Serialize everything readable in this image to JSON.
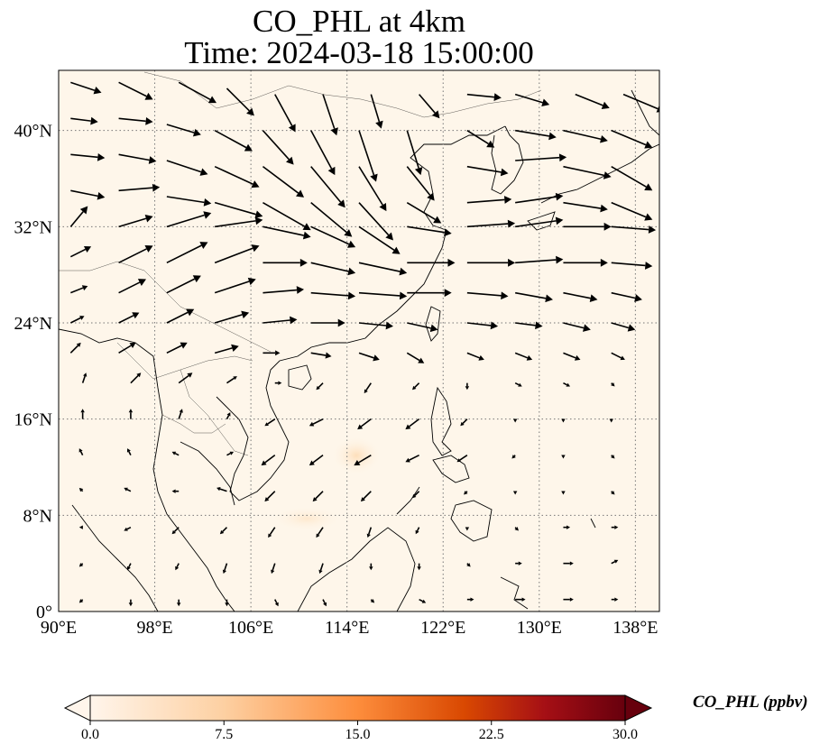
{
  "title": {
    "line1": "CO_PHL at 4km",
    "line2": "Time: 2024-03-18 15:00:00"
  },
  "map": {
    "lon_range": [
      90,
      140
    ],
    "lat_range": [
      0,
      45
    ],
    "lon_ticks": [
      {
        "value": 90,
        "label": "90°E"
      },
      {
        "value": 98,
        "label": "98°E"
      },
      {
        "value": 106,
        "label": "106°E"
      },
      {
        "value": 114,
        "label": "114°E"
      },
      {
        "value": 122,
        "label": "122°E"
      },
      {
        "value": 130,
        "label": "130°E"
      },
      {
        "value": 138,
        "label": "138°E"
      }
    ],
    "lat_ticks": [
      {
        "value": 0,
        "label": "0°"
      },
      {
        "value": 8,
        "label": "8°N"
      },
      {
        "value": 16,
        "label": "16°N"
      },
      {
        "value": 24,
        "label": "24°N"
      },
      {
        "value": 32,
        "label": "32°N"
      },
      {
        "value": 40,
        "label": "40°N"
      }
    ],
    "background_color": "#fef6ea",
    "gridlines": "dotted"
  },
  "colorbar": {
    "label": "CO_PHL (ppbv)",
    "min": 0,
    "max": 30,
    "ticks": [
      "0.0",
      "7.5",
      "15.0",
      "22.5",
      "30.0"
    ],
    "colormap": [
      "#fff5eb",
      "#fdd0a2",
      "#fd8d3c",
      "#d94801",
      "#a50f15",
      "#67000d"
    ],
    "extend": "both"
  },
  "chart_data": {
    "type": "vector-field",
    "description": "wind vectors (direction and relative speed)",
    "vectors": [
      [
        91,
        44,
        0.9,
        -0.3
      ],
      [
        95,
        44,
        1.0,
        -0.5
      ],
      [
        100,
        44,
        1.1,
        -0.6
      ],
      [
        104,
        43.5,
        0.8,
        -0.8
      ],
      [
        108,
        43,
        0.6,
        -1.1
      ],
      [
        112,
        43,
        0.4,
        -1.2
      ],
      [
        116,
        43,
        0.3,
        -1.0
      ],
      [
        120,
        43,
        0.6,
        -0.7
      ],
      [
        124,
        43,
        1.0,
        -0.1
      ],
      [
        128,
        43,
        1.0,
        -0.3
      ],
      [
        133,
        43,
        1.0,
        -0.4
      ],
      [
        137,
        43,
        1.2,
        -0.5
      ],
      [
        91,
        41,
        0.8,
        -0.1
      ],
      [
        95,
        41,
        1.0,
        -0.1
      ],
      [
        99,
        40.5,
        1.0,
        -0.3
      ],
      [
        103,
        40,
        1.1,
        -0.6
      ],
      [
        107,
        40,
        0.9,
        -1.0
      ],
      [
        111,
        40,
        0.7,
        -1.3
      ],
      [
        115,
        40,
        0.5,
        -1.5
      ],
      [
        119,
        40,
        0.4,
        -1.3
      ],
      [
        124,
        40,
        0.8,
        -0.5
      ],
      [
        128,
        40,
        1.2,
        -0.2
      ],
      [
        132,
        40,
        1.3,
        -0.3
      ],
      [
        136,
        40,
        1.2,
        -0.5
      ],
      [
        91,
        38,
        1.0,
        -0.1
      ],
      [
        95,
        38,
        1.1,
        -0.2
      ],
      [
        99,
        37.5,
        1.2,
        -0.4
      ],
      [
        103,
        37,
        1.3,
        -0.6
      ],
      [
        107,
        37,
        1.2,
        -0.9
      ],
      [
        111,
        37,
        1.0,
        -1.2
      ],
      [
        115,
        37,
        0.8,
        -1.3
      ],
      [
        119,
        37,
        0.8,
        -1.0
      ],
      [
        124,
        37,
        1.2,
        -0.2
      ],
      [
        128,
        37.5,
        1.5,
        0.1
      ],
      [
        132,
        37,
        1.4,
        -0.3
      ],
      [
        136,
        37,
        1.2,
        -0.7
      ],
      [
        91,
        35,
        1.0,
        -0.2
      ],
      [
        95,
        35,
        1.2,
        0.1
      ],
      [
        99,
        34.5,
        1.3,
        -0.2
      ],
      [
        103,
        34,
        1.4,
        -0.4
      ],
      [
        107,
        34,
        1.4,
        -0.8
      ],
      [
        111,
        34,
        1.2,
        -1.0
      ],
      [
        115,
        34,
        1.0,
        -1.1
      ],
      [
        119,
        34,
        1.0,
        -0.6
      ],
      [
        124,
        34,
        1.3,
        0.1
      ],
      [
        128,
        34,
        1.4,
        0.2
      ],
      [
        132,
        34,
        1.3,
        -0.2
      ],
      [
        136,
        34,
        1.2,
        -0.5
      ],
      [
        91,
        32,
        0.5,
        0.6
      ],
      [
        95,
        32,
        1.0,
        0.3
      ],
      [
        99,
        32,
        1.3,
        0.4
      ],
      [
        103,
        32,
        1.4,
        0.2
      ],
      [
        107,
        32,
        1.4,
        -0.3
      ],
      [
        111,
        32,
        1.3,
        -0.6
      ],
      [
        115,
        32,
        1.2,
        -0.8
      ],
      [
        119,
        32,
        1.3,
        -0.2
      ],
      [
        124,
        32,
        1.4,
        0.1
      ],
      [
        128,
        32,
        1.4,
        0.2
      ],
      [
        132,
        32,
        1.4,
        0.0
      ],
      [
        136,
        32,
        1.3,
        -0.1
      ],
      [
        91,
        29.5,
        0.6,
        0.3
      ],
      [
        95,
        29,
        1.0,
        0.5
      ],
      [
        99,
        29,
        1.2,
        0.6
      ],
      [
        103,
        29,
        1.3,
        0.5
      ],
      [
        107,
        29,
        1.3,
        0.0
      ],
      [
        111,
        29,
        1.3,
        -0.3
      ],
      [
        115,
        29,
        1.4,
        -0.3
      ],
      [
        119,
        29,
        1.4,
        0.0
      ],
      [
        124,
        29,
        1.4,
        0.0
      ],
      [
        128,
        29,
        1.4,
        0.1
      ],
      [
        132,
        29,
        1.3,
        0.0
      ],
      [
        136,
        29,
        1.2,
        -0.1
      ],
      [
        91,
        26.5,
        0.5,
        0.2
      ],
      [
        95,
        26.5,
        0.8,
        0.4
      ],
      [
        99,
        26.5,
        1.0,
        0.5
      ],
      [
        103,
        26.5,
        1.2,
        0.4
      ],
      [
        107,
        26.5,
        1.2,
        0.1
      ],
      [
        111,
        26.5,
        1.3,
        -0.1
      ],
      [
        115,
        26.5,
        1.4,
        -0.1
      ],
      [
        119,
        26.5,
        1.3,
        0.0
      ],
      [
        124,
        26.5,
        1.2,
        -0.1
      ],
      [
        128,
        26.5,
        1.1,
        -0.2
      ],
      [
        132,
        26.5,
        1.0,
        -0.2
      ],
      [
        136,
        26.5,
        0.9,
        -0.2
      ],
      [
        91,
        24,
        0.4,
        0.2
      ],
      [
        95,
        24,
        0.6,
        0.3
      ],
      [
        99,
        24,
        0.8,
        0.4
      ],
      [
        103,
        24,
        1.0,
        0.3
      ],
      [
        107,
        24,
        1.0,
        0.1
      ],
      [
        111,
        24,
        1.0,
        0.0
      ],
      [
        115,
        24,
        1.0,
        -0.1
      ],
      [
        119,
        24,
        0.9,
        -0.2
      ],
      [
        124,
        24,
        0.9,
        -0.1
      ],
      [
        128,
        24,
        0.8,
        -0.1
      ],
      [
        132,
        24,
        0.8,
        -0.2
      ],
      [
        136,
        24,
        0.7,
        -0.2
      ],
      [
        91,
        21.5,
        0.3,
        0.3
      ],
      [
        95,
        21.5,
        0.5,
        0.3
      ],
      [
        99,
        21.5,
        0.6,
        0.3
      ],
      [
        103,
        21.5,
        0.7,
        0.2
      ],
      [
        107,
        21.5,
        0.5,
        0.0
      ],
      [
        111,
        21.5,
        0.6,
        -0.1
      ],
      [
        115,
        21.5,
        0.6,
        -0.2
      ],
      [
        119,
        21.5,
        0.5,
        -0.3
      ],
      [
        124,
        21.5,
        0.5,
        -0.2
      ],
      [
        128,
        21.5,
        0.5,
        -0.2
      ],
      [
        132,
        21.5,
        0.5,
        -0.2
      ],
      [
        136,
        21.5,
        0.4,
        -0.2
      ],
      [
        92,
        19,
        0.1,
        0.3
      ],
      [
        96,
        19,
        0.3,
        0.3
      ],
      [
        100,
        19,
        0.4,
        0.3
      ],
      [
        104,
        19,
        0.3,
        0.2
      ],
      [
        108,
        19,
        0.2,
        0.0
      ],
      [
        112,
        19,
        -0.2,
        -0.2
      ],
      [
        116,
        19,
        -0.2,
        -0.3
      ],
      [
        120,
        19,
        -0.2,
        -0.2
      ],
      [
        124,
        19,
        0.0,
        -0.2
      ],
      [
        128,
        19,
        0.2,
        -0.1
      ],
      [
        132,
        19,
        0.2,
        -0.1
      ],
      [
        136,
        19,
        0.1,
        -0.1
      ],
      [
        92,
        16,
        0.0,
        0.3
      ],
      [
        96,
        16,
        0.0,
        0.3
      ],
      [
        100,
        16,
        0.1,
        0.3
      ],
      [
        104,
        16,
        0.1,
        0.2
      ],
      [
        108,
        16,
        -0.3,
        -0.2
      ],
      [
        112,
        16,
        -0.4,
        -0.2
      ],
      [
        116,
        16,
        -0.4,
        -0.3
      ],
      [
        120,
        16,
        -0.4,
        -0.3
      ],
      [
        124,
        16,
        -0.2,
        -0.2
      ],
      [
        128,
        16,
        0.0,
        -0.1
      ],
      [
        132,
        16,
        0.0,
        -0.1
      ],
      [
        136,
        16,
        0.0,
        -0.1
      ],
      [
        92,
        13,
        -0.1,
        0.2
      ],
      [
        96,
        13,
        -0.1,
        0.2
      ],
      [
        100,
        13,
        -0.2,
        0.1
      ],
      [
        104,
        13,
        0.2,
        0.1
      ],
      [
        108,
        13,
        -0.4,
        -0.3
      ],
      [
        112,
        13,
        -0.4,
        -0.3
      ],
      [
        116,
        13,
        -0.5,
        -0.3
      ],
      [
        120,
        13,
        -0.4,
        -0.2
      ],
      [
        124,
        13,
        -0.3,
        -0.2
      ],
      [
        128,
        13,
        -0.1,
        -0.1
      ],
      [
        132,
        13,
        0.0,
        -0.1
      ],
      [
        136,
        13,
        0.1,
        -0.1
      ],
      [
        92,
        10,
        -0.1,
        0.1
      ],
      [
        96,
        10,
        -0.2,
        0.1
      ],
      [
        100,
        10,
        -0.2,
        0.0
      ],
      [
        104,
        10,
        -0.3,
        0.1
      ],
      [
        108,
        10,
        -0.3,
        -0.3
      ],
      [
        112,
        10,
        -0.3,
        -0.3
      ],
      [
        116,
        10,
        -0.3,
        -0.3
      ],
      [
        120,
        10,
        -0.2,
        -0.2
      ],
      [
        124,
        10,
        -0.1,
        -0.1
      ],
      [
        128,
        10,
        0.0,
        -0.1
      ],
      [
        132,
        10,
        0.0,
        -0.1
      ],
      [
        136,
        10,
        0.1,
        -0.1
      ],
      [
        92,
        7,
        -0.1,
        0.0
      ],
      [
        96,
        7,
        -0.2,
        -0.1
      ],
      [
        100,
        7,
        -0.2,
        -0.2
      ],
      [
        104,
        7,
        -0.2,
        -0.2
      ],
      [
        108,
        7,
        -0.2,
        -0.3
      ],
      [
        112,
        7,
        -0.2,
        -0.3
      ],
      [
        116,
        7,
        -0.1,
        -0.3
      ],
      [
        120,
        7,
        -0.1,
        -0.2
      ],
      [
        124,
        7,
        0.0,
        -0.1
      ],
      [
        128,
        7,
        0.1,
        -0.1
      ],
      [
        132,
        7,
        0.2,
        0.0
      ],
      [
        136,
        7,
        0.2,
        0.0
      ],
      [
        92,
        4,
        -0.1,
        -0.1
      ],
      [
        96,
        4,
        -0.1,
        -0.2
      ],
      [
        100,
        4,
        -0.1,
        -0.2
      ],
      [
        104,
        4,
        -0.1,
        -0.3
      ],
      [
        108,
        4,
        -0.1,
        -0.3
      ],
      [
        112,
        4,
        -0.1,
        -0.3
      ],
      [
        116,
        4,
        0.0,
        -0.2
      ],
      [
        120,
        4,
        0.0,
        -0.2
      ],
      [
        124,
        4,
        0.1,
        -0.1
      ],
      [
        128,
        4,
        0.2,
        0.0
      ],
      [
        132,
        4,
        0.3,
        0.0
      ],
      [
        136,
        4,
        0.2,
        0.1
      ],
      [
        92,
        1,
        -0.1,
        -0.1
      ],
      [
        96,
        1,
        0.0,
        -0.2
      ],
      [
        100,
        1,
        0.0,
        -0.2
      ],
      [
        104,
        1,
        0.0,
        -0.2
      ],
      [
        108,
        1,
        0.1,
        -0.2
      ],
      [
        112,
        1,
        0.1,
        -0.2
      ],
      [
        116,
        1,
        0.1,
        -0.1
      ],
      [
        120,
        1,
        0.2,
        -0.1
      ],
      [
        124,
        1,
        0.2,
        0.0
      ],
      [
        128,
        1,
        0.3,
        0.0
      ],
      [
        132,
        1,
        0.3,
        0.0
      ],
      [
        136,
        1,
        0.2,
        0.0
      ]
    ]
  }
}
